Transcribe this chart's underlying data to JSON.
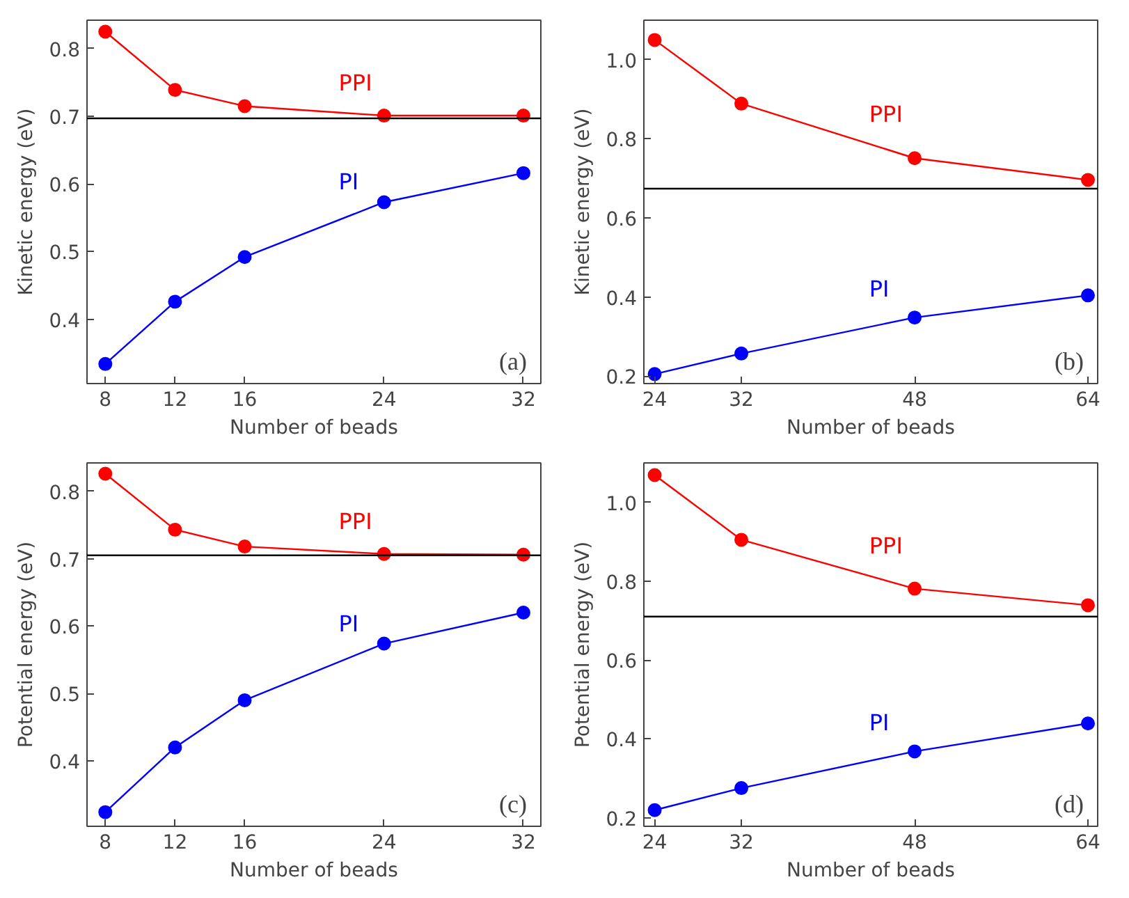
{
  "chart_data": [
    {
      "type": "line",
      "xlabel": "Number of beads",
      "ylabel": "Kinetic energy (eV)",
      "annotations": [
        "(a)"
      ],
      "x": [
        8,
        12,
        16,
        24,
        32
      ],
      "xlim": [
        6.95,
        33.0
      ],
      "xticks": [
        8,
        12,
        16,
        24,
        32
      ],
      "ylim": [
        0.305,
        0.842
      ],
      "yticks": [
        0.4,
        0.5,
        0.6,
        0.7,
        0.8
      ],
      "marker": "circle",
      "line_style": "solid",
      "grid": false,
      "legend": false,
      "series": [
        {
          "name": "PPI",
          "color": "#ff0000",
          "values": [
            0.825,
            0.739,
            0.715,
            0.701,
            0.701
          ]
        },
        {
          "name": "PI",
          "color": "#0000ff",
          "values": [
            0.334,
            0.426,
            0.492,
            0.573,
            0.616
          ]
        }
      ],
      "ref_lines": [
        {
          "axis": "y",
          "value": 0.697,
          "color": "#000000"
        }
      ]
    },
    {
      "type": "line",
      "xlabel": "Number of beads",
      "ylabel": "Kinetic energy (eV)",
      "annotations": [
        "(b)"
      ],
      "x": [
        24,
        32,
        48,
        64
      ],
      "xlim": [
        23.0,
        64.9
      ],
      "xticks": [
        24,
        32,
        48,
        64
      ],
      "ylim": [
        0.181,
        1.1
      ],
      "yticks": [
        {
          "value": 0.2,
          "label": "0.2"
        },
        {
          "value": 0.4,
          "label": "0.4"
        },
        {
          "value": 0.6,
          "label": "0.6"
        },
        {
          "value": 0.8,
          "label": "0.8"
        },
        {
          "value": 1.0,
          "label": "1.0"
        }
      ],
      "marker": "circle",
      "line_style": "solid",
      "grid": false,
      "legend": false,
      "series": [
        {
          "name": "PPI",
          "color": "#ff0000",
          "values": [
            1.05,
            0.889,
            0.751,
            0.696
          ]
        },
        {
          "name": "PI",
          "color": "#0000ff",
          "values": [
            0.205,
            0.257,
            0.348,
            0.404
          ]
        }
      ],
      "ref_lines": [
        {
          "axis": "y",
          "value": 0.674,
          "color": "#000000"
        }
      ]
    },
    {
      "type": "line",
      "xlabel": "Number of beads",
      "ylabel": "Potential energy (eV)",
      "annotations": [
        "(c)"
      ],
      "x": [
        8,
        12,
        16,
        24,
        32
      ],
      "xlim": [
        6.95,
        33.0
      ],
      "xticks": [
        8,
        12,
        16,
        24,
        32
      ],
      "ylim": [
        0.303,
        0.842
      ],
      "yticks": [
        0.4,
        0.5,
        0.6,
        0.7,
        0.8
      ],
      "marker": "circle",
      "line_style": "solid",
      "grid": false,
      "legend": false,
      "series": [
        {
          "name": "PPI",
          "color": "#ff0000",
          "values": [
            0.826,
            0.743,
            0.718,
            0.707,
            0.706
          ]
        },
        {
          "name": "PI",
          "color": "#0000ff",
          "values": [
            0.324,
            0.42,
            0.49,
            0.574,
            0.62
          ]
        }
      ],
      "ref_lines": [
        {
          "axis": "y",
          "value": 0.705,
          "color": "#000000"
        }
      ]
    },
    {
      "type": "line",
      "xlabel": "Number of beads",
      "ylabel": "Potential energy (eV)",
      "annotations": [
        "(d)"
      ],
      "x": [
        24,
        32,
        48,
        64
      ],
      "xlim": [
        23.0,
        64.9
      ],
      "xticks": [
        24,
        32,
        48,
        64
      ],
      "ylim": [
        0.178,
        1.1
      ],
      "yticks": [
        {
          "value": 0.2,
          "label": "0.2"
        },
        {
          "value": 0.4,
          "label": "0.4"
        },
        {
          "value": 0.6,
          "label": "0.6"
        },
        {
          "value": 0.8,
          "label": "0.8"
        },
        {
          "value": 1.0,
          "label": "1.0"
        }
      ],
      "marker": "circle",
      "line_style": "solid",
      "grid": false,
      "legend": false,
      "series": [
        {
          "name": "PPI",
          "color": "#ff0000",
          "values": [
            1.069,
            0.905,
            0.781,
            0.739
          ]
        },
        {
          "name": "PI",
          "color": "#0000ff",
          "values": [
            0.219,
            0.275,
            0.368,
            0.439
          ]
        }
      ],
      "ref_lines": [
        {
          "axis": "y",
          "value": 0.71,
          "color": "#000000"
        }
      ]
    }
  ]
}
